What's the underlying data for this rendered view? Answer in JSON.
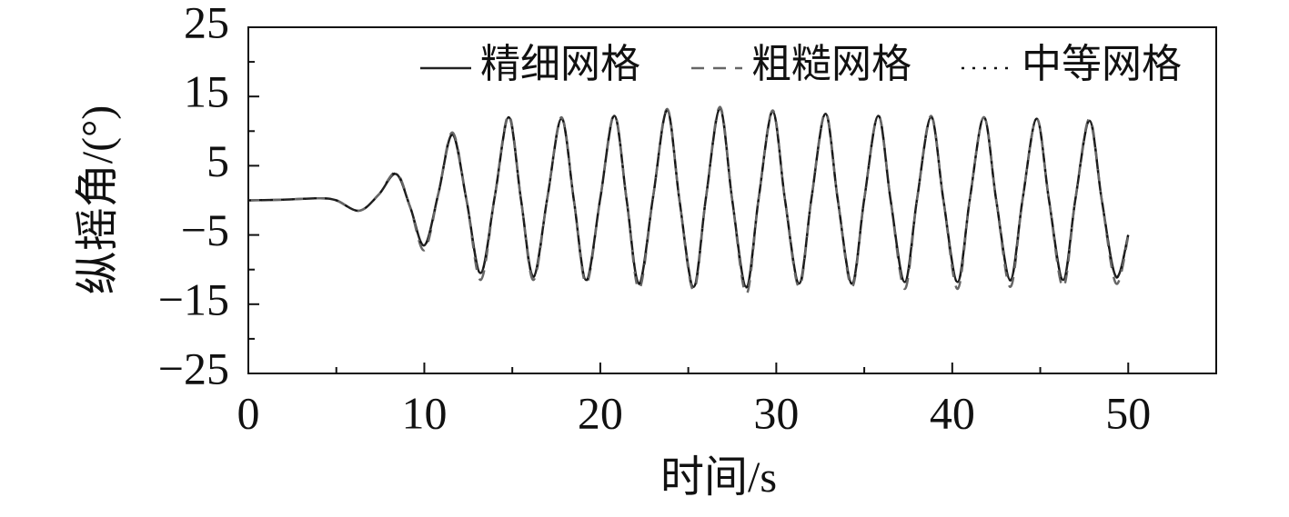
{
  "chart_data": {
    "type": "line",
    "xlabel": "时间/s",
    "ylabel": "纵摇角/(°)",
    "x": [
      0,
      2,
      4,
      5,
      6.3,
      7.4,
      8.4,
      9.2,
      10,
      10.8,
      11.6,
      12.4,
      13.2,
      14,
      14.8,
      15.5,
      16.2,
      17,
      17.8,
      18.5,
      19.2,
      20,
      20.8,
      21.5,
      22.2,
      23,
      23.8,
      24.5,
      25.3,
      26,
      26.8,
      27.5,
      28.3,
      29,
      29.8,
      30.5,
      31.3,
      32,
      32.8,
      33.5,
      34.3,
      35,
      35.8,
      36.5,
      37.3,
      38,
      38.8,
      39.5,
      40.3,
      41,
      41.8,
      42.5,
      43.3,
      44,
      44.8,
      45.5,
      46.3,
      47,
      47.8,
      48.5,
      49.3,
      50
    ],
    "series": [
      {
        "name": "精细网格",
        "color": "#222222",
        "style": "solid",
        "values": [
          0,
          0.1,
          0.3,
          0,
          -1.5,
          0.8,
          3.8,
          -1,
          -6.5,
          1,
          9.5,
          0,
          -10.5,
          0.5,
          12,
          0,
          -11,
          0.5,
          11.8,
          0,
          -11.5,
          0.3,
          12.2,
          0,
          -12,
          0.5,
          13,
          0,
          -12.5,
          0.3,
          13.2,
          0,
          -12.5,
          0.3,
          12.8,
          0,
          -12,
          0.3,
          12.5,
          0,
          -12,
          0.2,
          12.2,
          0,
          -11.8,
          0.2,
          12,
          0,
          -11.8,
          0.2,
          12,
          0,
          -11.5,
          0.2,
          11.8,
          0,
          -11.5,
          0.2,
          11.5,
          0,
          -11,
          -5
        ]
      },
      {
        "name": "粗糙网格",
        "color": "#666666",
        "style": "dashed",
        "values": [
          0,
          0.1,
          0.3,
          0,
          -1.5,
          0.8,
          4,
          -1,
          -7.2,
          1,
          9.8,
          0,
          -11.5,
          0.5,
          12.3,
          0,
          -11.5,
          0.5,
          12,
          0,
          -12,
          0.3,
          12.4,
          0,
          -12.8,
          0.5,
          13.2,
          0,
          -13,
          0.3,
          13.5,
          0,
          -13.5,
          0.3,
          13,
          0,
          -12.5,
          0.3,
          12.7,
          0,
          -12.5,
          0.2,
          12.3,
          0,
          -12.8,
          0.2,
          12.2,
          0,
          -12.8,
          0.2,
          12,
          0,
          -12.5,
          0.2,
          11.8,
          0,
          -12.5,
          0.2,
          11.8,
          0,
          -12,
          -5.2
        ]
      },
      {
        "name": "中等网格",
        "color": "#111111",
        "style": "dotted",
        "values": [
          0,
          0.1,
          0.3,
          0,
          -1.5,
          0.8,
          3.9,
          -1,
          -6.6,
          1,
          9.5,
          0,
          -10.6,
          0.5,
          12,
          0,
          -11.1,
          0.5,
          11.8,
          0,
          -11.6,
          0.3,
          12.2,
          0,
          -12.1,
          0.5,
          13,
          0,
          -12.6,
          0.3,
          13.2,
          0,
          -12.6,
          0.3,
          12.8,
          0,
          -12.1,
          0.3,
          12.5,
          0,
          -12.1,
          0.2,
          12.2,
          0,
          -11.9,
          0.2,
          12,
          0,
          -11.9,
          0.2,
          12,
          0,
          -11.6,
          0.2,
          11.8,
          0,
          -11.6,
          0.2,
          11.5,
          0,
          -11.1,
          -5
        ]
      }
    ],
    "xlim": [
      0,
      55
    ],
    "xticks": [
      0,
      10,
      20,
      30,
      40,
      50
    ],
    "ylim": [
      -25,
      25
    ],
    "yticks": [
      {
        "value": -25,
        "label": "−25"
      },
      {
        "value": -15,
        "label": "−15"
      },
      {
        "value": -5,
        "label": "−5"
      },
      5,
      15,
      25
    ],
    "legend": "upper right",
    "grid": false
  }
}
